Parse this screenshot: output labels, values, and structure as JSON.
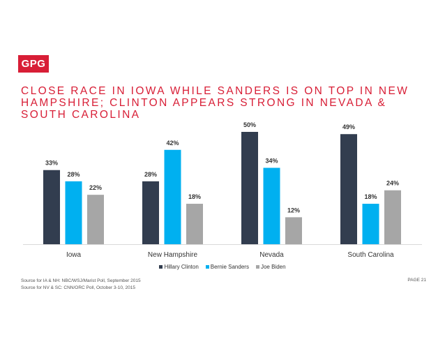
{
  "logo": {
    "text": "GPG"
  },
  "title": "CLOSE RACE IN IOWA WHILE SANDERS IS ON TOP IN NEW HAMPSHIRE; CLINTON APPEARS STRONG IN NEVADA & SOUTH CAROLINA",
  "chart_data": {
    "type": "bar",
    "categories": [
      "Iowa",
      "New Hampshire",
      "Nevada",
      "South Carolina"
    ],
    "series": [
      {
        "name": "Hillary Clinton",
        "values": [
          33,
          28,
          50,
          49
        ],
        "color": "#323d4f"
      },
      {
        "name": "Bernie Sanders",
        "values": [
          28,
          42,
          34,
          18
        ],
        "color": "#00b0f0"
      },
      {
        "name": "Joe Biden",
        "values": [
          22,
          18,
          12,
          24
        ],
        "color": "#a6a6a6"
      }
    ],
    "value_format": "{v}%",
    "ylim": [
      0,
      50
    ],
    "grid": false,
    "legend": "bottom"
  },
  "sources": [
    "Source for IA & NH: NBC/WSJ/Marist Poll, September 2015",
    "Source for NV & SC: CNN/ORC Poll, October 3-10, 2015"
  ],
  "page_label": "PAGE 21"
}
